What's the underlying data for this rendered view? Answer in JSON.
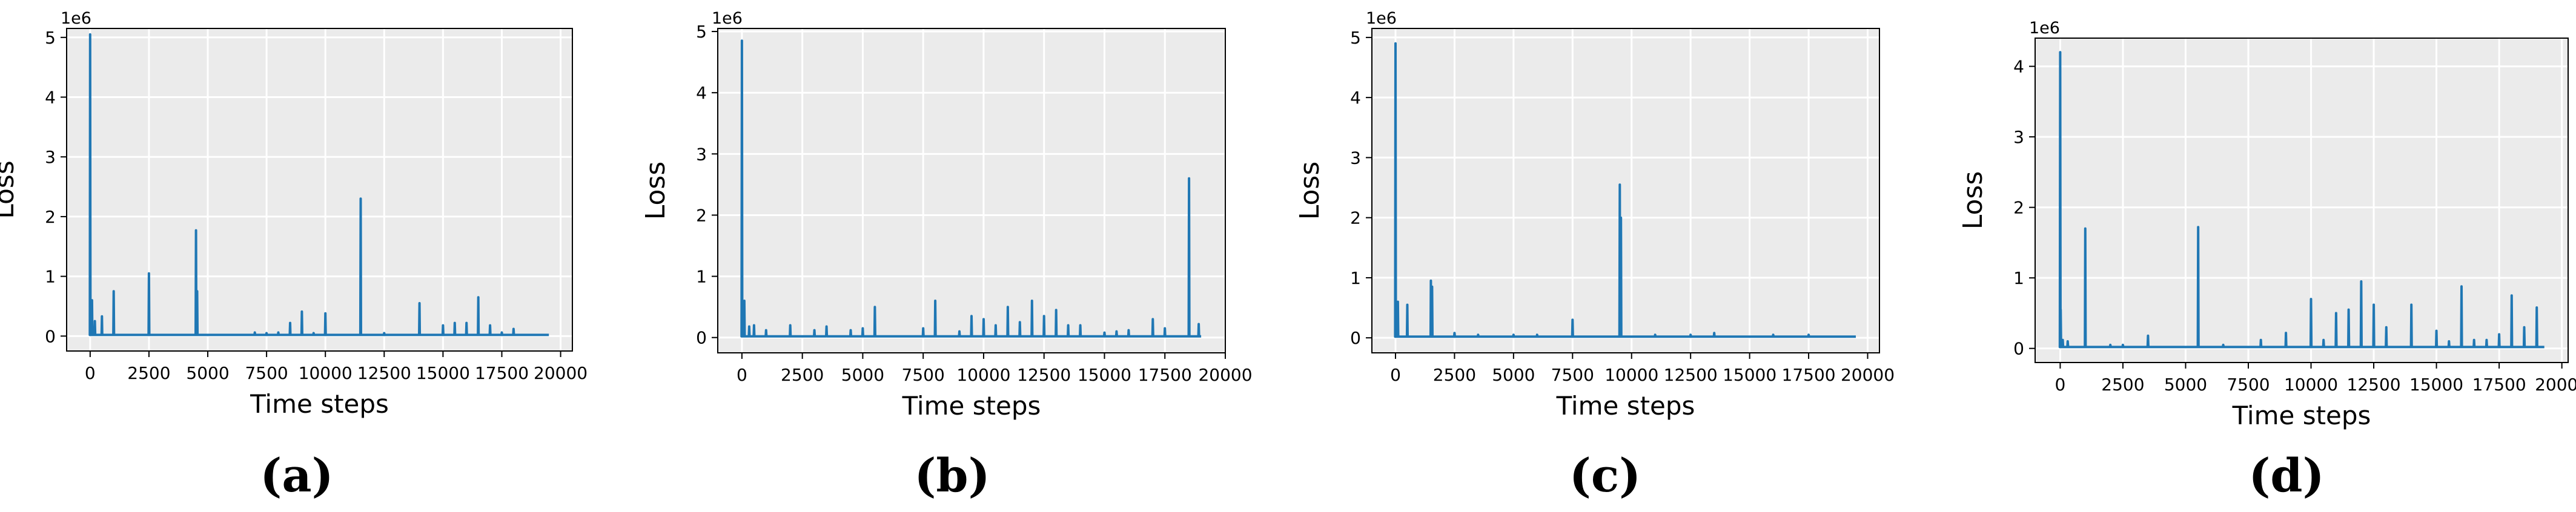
{
  "chart_data": [
    {
      "type": "line",
      "caption": "(a)",
      "xlabel": "Time steps",
      "ylabel": "Loss",
      "offset_label": "1e6",
      "xlim": [
        -1000,
        20500
      ],
      "ylim": [
        -0.25,
        5.15
      ],
      "xticks": [
        0,
        2500,
        5000,
        7500,
        10000,
        12500,
        15000,
        17500,
        20000
      ],
      "xtick_labels": [
        "0",
        "2500",
        "5000",
        "7500",
        "10000",
        "12500",
        "15000",
        "17500",
        "20000"
      ],
      "yticks": [
        0,
        1,
        2,
        3,
        4,
        5
      ],
      "ytick_labels": [
        "0",
        "1",
        "2",
        "3",
        "4",
        "5"
      ],
      "grid": true,
      "color": "#1f77b4",
      "x_end": 19500,
      "baseline": 0.02,
      "spikes": [
        [
          0,
          5.05
        ],
        [
          80,
          0.6
        ],
        [
          200,
          0.25
        ],
        [
          500,
          0.33
        ],
        [
          1000,
          0.75
        ],
        [
          2500,
          1.05
        ],
        [
          4500,
          1.77
        ],
        [
          4550,
          0.75
        ],
        [
          7000,
          0.06
        ],
        [
          7500,
          0.05
        ],
        [
          8000,
          0.06
        ],
        [
          8500,
          0.22
        ],
        [
          9000,
          0.41
        ],
        [
          9500,
          0.05
        ],
        [
          10000,
          0.38
        ],
        [
          11500,
          2.3
        ],
        [
          12500,
          0.05
        ],
        [
          14000,
          0.55
        ],
        [
          15000,
          0.18
        ],
        [
          15500,
          0.22
        ],
        [
          16000,
          0.22
        ],
        [
          16500,
          0.65
        ],
        [
          17000,
          0.18
        ],
        [
          17500,
          0.06
        ],
        [
          18000,
          0.12
        ]
      ]
    },
    {
      "type": "line",
      "caption": "(b)",
      "xlabel": "Time steps",
      "ylabel": "Loss",
      "offset_label": "1e6",
      "xlim": [
        -1000,
        20000
      ],
      "ylim": [
        -0.25,
        5.05
      ],
      "xticks": [
        0,
        2500,
        5000,
        7500,
        10000,
        12500,
        15000,
        17500,
        20000
      ],
      "xtick_labels": [
        "0",
        "2500",
        "5000",
        "7500",
        "10000",
        "12500",
        "15000",
        "17500",
        "20000"
      ],
      "yticks": [
        0,
        1,
        2,
        3,
        4,
        5
      ],
      "ytick_labels": [
        "0",
        "1",
        "2",
        "3",
        "4",
        "5"
      ],
      "grid": true,
      "color": "#1f77b4",
      "x_end": 19000,
      "baseline": 0.02,
      "spikes": [
        [
          0,
          4.85
        ],
        [
          100,
          0.6
        ],
        [
          300,
          0.18
        ],
        [
          500,
          0.2
        ],
        [
          1000,
          0.12
        ],
        [
          2000,
          0.2
        ],
        [
          3000,
          0.12
        ],
        [
          3500,
          0.18
        ],
        [
          4500,
          0.12
        ],
        [
          5000,
          0.15
        ],
        [
          5500,
          0.5
        ],
        [
          7500,
          0.15
        ],
        [
          8000,
          0.6
        ],
        [
          9000,
          0.1
        ],
        [
          9500,
          0.35
        ],
        [
          10000,
          0.3
        ],
        [
          10500,
          0.2
        ],
        [
          11000,
          0.5
        ],
        [
          11500,
          0.25
        ],
        [
          12000,
          0.6
        ],
        [
          12500,
          0.35
        ],
        [
          13000,
          0.45
        ],
        [
          13500,
          0.2
        ],
        [
          14000,
          0.2
        ],
        [
          15000,
          0.08
        ],
        [
          15500,
          0.1
        ],
        [
          16000,
          0.12
        ],
        [
          17000,
          0.3
        ],
        [
          17500,
          0.15
        ],
        [
          18500,
          2.6
        ],
        [
          18900,
          0.22
        ]
      ]
    },
    {
      "type": "line",
      "caption": "(c)",
      "xlabel": "Time steps",
      "ylabel": "Loss",
      "offset_label": "1e6",
      "xlim": [
        -1000,
        20500
      ],
      "ylim": [
        -0.25,
        5.15
      ],
      "xticks": [
        0,
        2500,
        5000,
        7500,
        10000,
        12500,
        15000,
        17500,
        20000
      ],
      "xtick_labels": [
        "0",
        "2500",
        "5000",
        "7500",
        "10000",
        "12500",
        "15000",
        "17500",
        "20000"
      ],
      "yticks": [
        0,
        1,
        2,
        3,
        4,
        5
      ],
      "ytick_labels": [
        "0",
        "1",
        "2",
        "3",
        "4",
        "5"
      ],
      "grid": true,
      "color": "#1f77b4",
      "x_end": 19500,
      "baseline": 0.02,
      "spikes": [
        [
          0,
          4.9
        ],
        [
          100,
          0.6
        ],
        [
          500,
          0.55
        ],
        [
          1500,
          0.95
        ],
        [
          1550,
          0.85
        ],
        [
          2500,
          0.08
        ],
        [
          3500,
          0.05
        ],
        [
          5000,
          0.05
        ],
        [
          6000,
          0.05
        ],
        [
          7500,
          0.3
        ],
        [
          9500,
          2.55
        ],
        [
          9550,
          2.0
        ],
        [
          11000,
          0.05
        ],
        [
          12500,
          0.05
        ],
        [
          13500,
          0.08
        ],
        [
          16000,
          0.05
        ],
        [
          17500,
          0.05
        ]
      ]
    },
    {
      "type": "line",
      "caption": "(d)",
      "xlabel": "Time steps",
      "ylabel": "Loss",
      "offset_label": "1e6",
      "xlim": [
        -1000,
        20250
      ],
      "ylim": [
        -0.2,
        4.4
      ],
      "xticks": [
        0,
        2500,
        5000,
        7500,
        10000,
        12500,
        15000,
        17500,
        20000
      ],
      "xtick_labels": [
        "0",
        "2500",
        "5000",
        "7500",
        "10000",
        "12500",
        "15000",
        "17500",
        "20000"
      ],
      "yticks": [
        0,
        1,
        2,
        3,
        4
      ],
      "ytick_labels": [
        "0",
        "1",
        "2",
        "3",
        "4"
      ],
      "grid": true,
      "color": "#1f77b4",
      "x_end": 19300,
      "baseline": 0.02,
      "spikes": [
        [
          0,
          4.2
        ],
        [
          20,
          0.55
        ],
        [
          100,
          0.12
        ],
        [
          300,
          0.1
        ],
        [
          1000,
          1.7
        ],
        [
          2000,
          0.05
        ],
        [
          2500,
          0.05
        ],
        [
          3500,
          0.18
        ],
        [
          5500,
          1.72
        ],
        [
          6500,
          0.05
        ],
        [
          8000,
          0.12
        ],
        [
          9000,
          0.22
        ],
        [
          10000,
          0.7
        ],
        [
          10500,
          0.12
        ],
        [
          11000,
          0.5
        ],
        [
          11500,
          0.55
        ],
        [
          12000,
          0.95
        ],
        [
          12500,
          0.62
        ],
        [
          13000,
          0.3
        ],
        [
          14000,
          0.62
        ],
        [
          15000,
          0.25
        ],
        [
          15500,
          0.1
        ],
        [
          16000,
          0.88
        ],
        [
          16500,
          0.12
        ],
        [
          17000,
          0.12
        ],
        [
          17500,
          0.2
        ],
        [
          18000,
          0.75
        ],
        [
          18500,
          0.3
        ],
        [
          19000,
          0.58
        ]
      ]
    }
  ]
}
